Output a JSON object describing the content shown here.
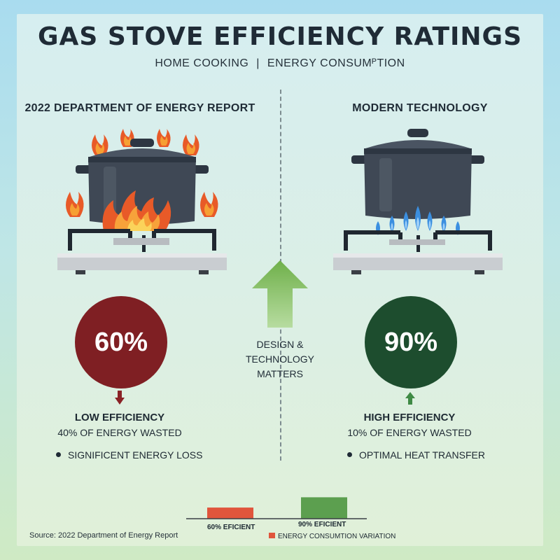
{
  "header": {
    "title": "GAS STOVE EFFICIENCY RATINGS",
    "subtitle_left": "HOME COOKING",
    "subtitle_sep": "|",
    "subtitle_right": "ENERGY CONSUMᴾTION"
  },
  "left": {
    "heading": "2022 DEPARTMENT OF ENERGY REPORT",
    "percent": "60%",
    "efficiency_label": "LOW EFFICIENCY",
    "wasted_label": "40% OF ENERGY WASTED",
    "bullet": "SIGNIFICENT ENERGY LOSS",
    "badge_color": "#7f1f23",
    "flame_style": "orange-open-flame"
  },
  "right": {
    "heading": "MODERN TECHNOLOGY",
    "percent": "90%",
    "efficiency_label": "HIGH EFFICIENCY",
    "wasted_label": "10% OF ENERGY WASTED",
    "bullet": "OPTIMAL HEAT TRANSFER",
    "badge_color": "#1d4d2e",
    "flame_style": "blue-controlled-flame"
  },
  "center": {
    "line1": "DESIGN &",
    "line2": "TECHNOLOGY",
    "line3": "MATTERS",
    "arrow_color": "#6fb04a"
  },
  "mini_chart": {
    "bars": [
      {
        "label": "60% EFICIENT",
        "value": 60,
        "color": "#e0553c"
      },
      {
        "label": "90% EFICIENT",
        "value": 90,
        "color": "#5c9f4f"
      }
    ],
    "legend": "ENERGY CONSUMTION VARIATION"
  },
  "source": "Source: 2022 Department of Energy Report"
}
